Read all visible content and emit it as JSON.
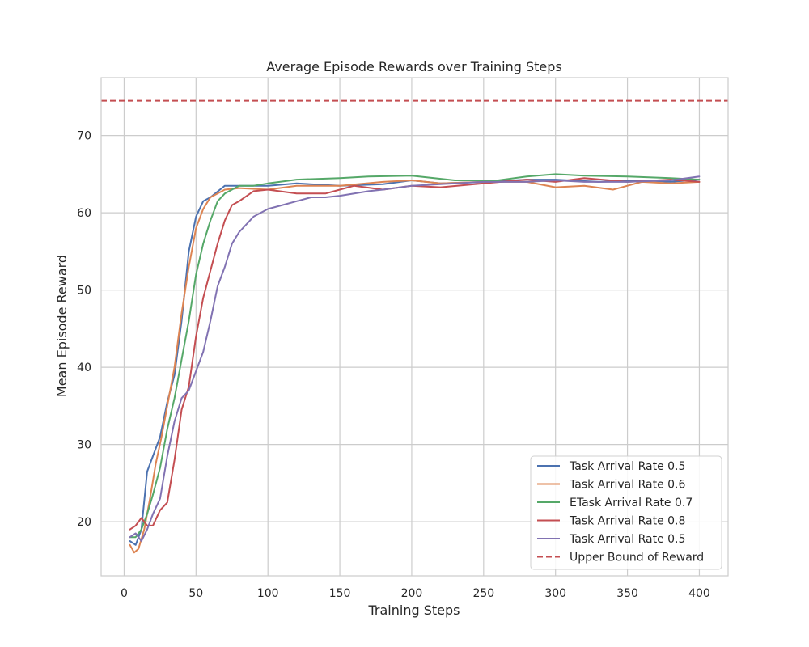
{
  "chart_data": {
    "type": "line",
    "title": "Average Episode Rewards over Training Steps",
    "xlabel": "Training Steps",
    "ylabel": "Mean Episode Reward",
    "xlim": [
      -16,
      420
    ],
    "ylim": [
      13,
      77.5
    ],
    "xticks": [
      0,
      50,
      100,
      150,
      200,
      250,
      300,
      350,
      400
    ],
    "yticks": [
      20,
      30,
      40,
      50,
      60,
      70
    ],
    "grid": true,
    "legend_position": "lower-right",
    "series": [
      {
        "name": "Task Arrival Rate 0.5",
        "color": "#4c72b0",
        "x": [
          4,
          8,
          12,
          16,
          20,
          25,
          30,
          35,
          40,
          45,
          50,
          55,
          60,
          70,
          80,
          100,
          120,
          150,
          180,
          200,
          220,
          250,
          280,
          300,
          330,
          360,
          380,
          400
        ],
        "y": [
          17.5,
          17.0,
          19.0,
          26.5,
          28.5,
          31.0,
          35.5,
          39.0,
          46.0,
          55.0,
          59.5,
          61.5,
          62.0,
          63.5,
          63.5,
          63.5,
          63.8,
          63.5,
          63.7,
          64.2,
          63.8,
          64.0,
          64.3,
          64.3,
          64.0,
          64.2,
          64.0,
          64.3
        ]
      },
      {
        "name": "Task Arrival Rate 0.6",
        "color": "#dd8452",
        "x": [
          4,
          7,
          10,
          14,
          18,
          22,
          26,
          30,
          35,
          40,
          45,
          50,
          55,
          60,
          65,
          70,
          80,
          100,
          120,
          150,
          180,
          200,
          220,
          250,
          280,
          300,
          320,
          340,
          360,
          380,
          400
        ],
        "y": [
          17.0,
          16.0,
          16.5,
          19.0,
          23.0,
          27.5,
          31.0,
          35.0,
          40.0,
          47.0,
          53.0,
          58.0,
          60.5,
          62.0,
          62.5,
          63.0,
          63.2,
          63.0,
          63.5,
          63.5,
          64.0,
          64.2,
          63.8,
          64.0,
          64.0,
          63.3,
          63.5,
          63.0,
          64.0,
          63.8,
          64.0
        ]
      },
      {
        "name": "ETask Arrival Rate 0.7",
        "color": "#55a868",
        "x": [
          4,
          8,
          12,
          16,
          20,
          25,
          30,
          35,
          40,
          45,
          50,
          55,
          60,
          65,
          70,
          80,
          90,
          100,
          120,
          150,
          170,
          200,
          230,
          260,
          280,
          300,
          320,
          350,
          380,
          400
        ],
        "y": [
          18.0,
          18.0,
          19.0,
          21.0,
          23.5,
          27.0,
          32.0,
          36.0,
          41.0,
          46.0,
          52.0,
          56.0,
          59.0,
          61.5,
          62.5,
          63.5,
          63.5,
          63.8,
          64.3,
          64.5,
          64.7,
          64.8,
          64.2,
          64.2,
          64.7,
          65.0,
          64.8,
          64.7,
          64.5,
          64.3
        ]
      },
      {
        "name": "Task Arrival Rate 0.8",
        "color": "#c44e52",
        "x": [
          4,
          8,
          12,
          16,
          20,
          25,
          30,
          35,
          40,
          45,
          50,
          55,
          60,
          65,
          70,
          75,
          80,
          90,
          100,
          120,
          140,
          150,
          160,
          180,
          200,
          220,
          250,
          280,
          300,
          320,
          350,
          380,
          400
        ],
        "y": [
          19.0,
          19.5,
          20.5,
          19.5,
          19.5,
          21.5,
          22.5,
          28.0,
          34.5,
          37.5,
          44.0,
          49.0,
          52.5,
          56.0,
          59.0,
          61.0,
          61.5,
          62.8,
          63.0,
          62.5,
          62.5,
          63.0,
          63.5,
          63.0,
          63.5,
          63.3,
          63.8,
          64.3,
          64.0,
          64.5,
          64.0,
          64.3,
          64.0
        ]
      },
      {
        "name": "Task Arrival Rate 0.5",
        "color": "#8172b2",
        "x": [
          4,
          8,
          12,
          16,
          20,
          25,
          30,
          35,
          40,
          45,
          50,
          55,
          60,
          65,
          70,
          75,
          80,
          90,
          100,
          110,
          120,
          130,
          140,
          150,
          170,
          180,
          200,
          220,
          250,
          280,
          300,
          320,
          350,
          380,
          400
        ],
        "y": [
          18.0,
          18.5,
          17.5,
          19.0,
          21.0,
          23.0,
          28.5,
          33.0,
          36.0,
          37.0,
          39.5,
          42.0,
          46.0,
          50.5,
          53.0,
          56.0,
          57.5,
          59.5,
          60.5,
          61.0,
          61.5,
          62.0,
          62.0,
          62.2,
          62.8,
          63.0,
          63.5,
          63.7,
          64.0,
          64.0,
          64.2,
          64.0,
          64.0,
          64.2,
          64.7
        ]
      }
    ],
    "reference_line": {
      "name": "Upper Bound of Reward",
      "y": 74.5,
      "color": "#c44e52",
      "style": "dashed"
    }
  }
}
